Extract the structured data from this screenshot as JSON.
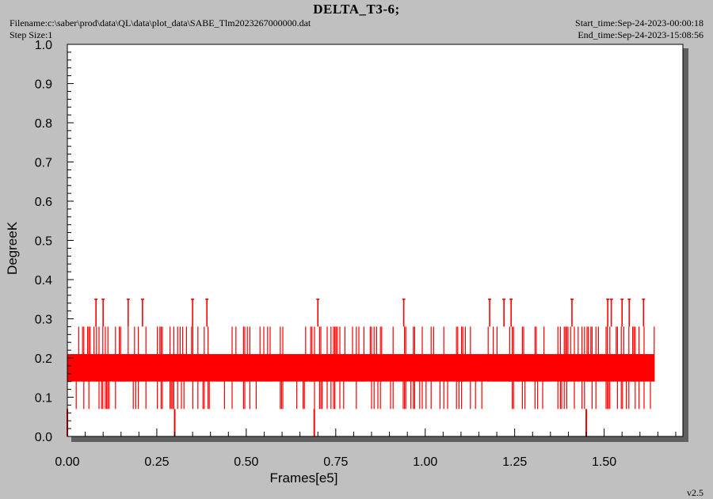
{
  "header": {
    "title": "DELTA_T3-6;",
    "filename": "Filename:c:\\saber\\prod\\data\\QL\\data\\plot_data\\SABE_Tlm2023267000000.dat",
    "step_size": "Step Size:1",
    "start_time": "Start_time:Sep-24-2023-00:00:18",
    "end_time": "End_time:Sep-24-2023-15:08:56",
    "version": "v2.5"
  },
  "colors": {
    "background": "#c0c0c0",
    "plot_background": "#ffffff",
    "series": "#ff0000",
    "shadow": "#606060"
  },
  "chart_data": {
    "type": "line",
    "title": "DELTA_T3-6;",
    "xlabel": "Frames[e5]",
    "ylabel": "DegreeK",
    "xlim": [
      0.0,
      1.72
    ],
    "ylim": [
      0.0,
      1.0
    ],
    "xticks": [
      "0.00",
      "0.25",
      "0.50",
      "0.75",
      "1.00",
      "1.25",
      "1.50"
    ],
    "xtick_values": [
      0.0,
      0.25,
      0.5,
      0.75,
      1.0,
      1.25,
      1.5
    ],
    "yticks": [
      "0.0",
      "0.1",
      "0.2",
      "0.3",
      "0.4",
      "0.5",
      "0.6",
      "0.7",
      "0.8",
      "0.9",
      "1.0"
    ],
    "ytick_values": [
      0.0,
      0.1,
      0.2,
      0.3,
      0.4,
      0.5,
      0.6,
      0.7,
      0.8,
      0.9,
      1.0
    ],
    "grid": false,
    "series": [
      {
        "color": "#ff0000",
        "x_range": [
          0.0,
          1.64
        ],
        "band": {
          "solid": [
            0.14,
            0.21
          ],
          "frequent": [
            0.07,
            0.28
          ],
          "levels": [
            0.0,
            0.07,
            0.14,
            0.21,
            0.28,
            0.35
          ]
        },
        "spikes": [
          {
            "x": 0.08,
            "y": 0.35
          },
          {
            "x": 0.1,
            "y": 0.35
          },
          {
            "x": 0.17,
            "y": 0.35
          },
          {
            "x": 0.21,
            "y": 0.35
          },
          {
            "x": 0.35,
            "y": 0.35
          },
          {
            "x": 0.39,
            "y": 0.35
          },
          {
            "x": 0.7,
            "y": 0.35
          },
          {
            "x": 0.94,
            "y": 0.35
          },
          {
            "x": 1.18,
            "y": 0.35
          },
          {
            "x": 1.22,
            "y": 0.35
          },
          {
            "x": 1.24,
            "y": 0.35
          },
          {
            "x": 1.41,
            "y": 0.35
          },
          {
            "x": 1.51,
            "y": 0.35
          },
          {
            "x": 1.52,
            "y": 0.35
          },
          {
            "x": 1.55,
            "y": 0.35
          },
          {
            "x": 1.57,
            "y": 0.35
          },
          {
            "x": 1.61,
            "y": 0.35
          }
        ],
        "dips": [
          {
            "x": 0.0,
            "y": 0.0
          },
          {
            "x": 0.3,
            "y": 0.0
          },
          {
            "x": 0.69,
            "y": 0.0
          },
          {
            "x": 1.45,
            "y": 0.0
          }
        ]
      }
    ]
  }
}
